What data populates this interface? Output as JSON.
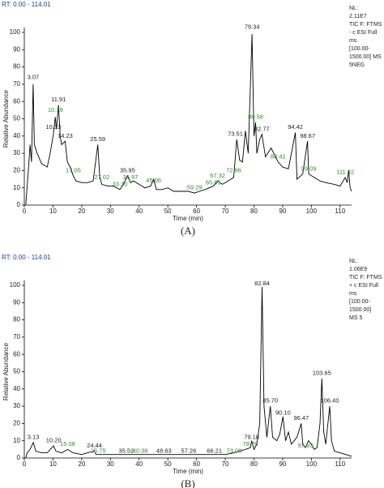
{
  "chart_data": [
    {
      "type": "line",
      "header": "RT: 0.00 - 114.01",
      "info_lines": [
        "NL:",
        "2.11E7",
        "TIC F: FTMS",
        "- c ESI Full",
        "ms",
        "[100.00-",
        "1500.00] MS",
        "5NEG"
      ],
      "x_label": "Time (min)",
      "y_label": "Relative Abundance",
      "caption": "(A)",
      "color": "#000000",
      "header_color": "#1f3fa0",
      "xlim": [
        0,
        114.01
      ],
      "ylim": [
        0,
        100
      ],
      "xticks": [
        0,
        10,
        20,
        30,
        40,
        50,
        60,
        70,
        80,
        90,
        100,
        110
      ],
      "yticks": [
        0,
        10,
        20,
        30,
        40,
        50,
        60,
        70,
        80,
        90,
        100
      ],
      "x": [
        0.5,
        1.5,
        2,
        2.5,
        3.07,
        3.5,
        4.5,
        6,
        8,
        9,
        10.13,
        10.79,
        11.2,
        11.91,
        12.5,
        13,
        14.23,
        15,
        16,
        17.05,
        18,
        20,
        22,
        24,
        25.59,
        26.3,
        27.02,
        29,
        31,
        33.3,
        34.5,
        35.95,
        37,
        38,
        40,
        42,
        44,
        45.06,
        46,
        48,
        50,
        52,
        55,
        57,
        59.29,
        61,
        63,
        65.85,
        67.32,
        69,
        71,
        72.96,
        74,
        75,
        76,
        77,
        78,
        79.34,
        80,
        80.58,
        81,
        82,
        82.77,
        84,
        86,
        88.41,
        90,
        92,
        94.42,
        95,
        97,
        98.67,
        99.09,
        101,
        103,
        105,
        108,
        110,
        111.82,
        112.5,
        113,
        113.5,
        114
      ],
      "values": [
        0,
        22,
        35,
        25,
        70,
        35,
        30,
        24,
        22,
        30,
        41,
        51,
        44,
        58,
        40,
        35,
        37,
        25,
        22,
        17,
        14,
        13,
        13,
        14,
        35,
        16,
        12,
        11,
        11,
        9,
        12,
        17,
        13,
        14,
        12,
        10,
        11,
        15,
        9,
        9,
        10,
        8,
        8,
        8,
        7,
        8,
        9,
        11,
        14,
        12,
        14,
        16,
        38,
        26,
        25,
        43,
        30,
        99,
        40,
        48,
        30,
        38,
        41,
        28,
        33,
        25,
        22,
        21,
        42,
        15,
        18,
        37,
        18,
        16,
        14,
        13,
        12,
        11,
        16,
        13,
        20,
        10,
        8
      ],
      "peaks": [
        {
          "label": "3.07",
          "x": 3.07,
          "y": 74,
          "color": "#222222"
        },
        {
          "label": "10.13",
          "x": 10.13,
          "y": 45,
          "color": "#222222"
        },
        {
          "label": "10.79",
          "x": 10.79,
          "y": 55,
          "color": "#2e8b2e"
        },
        {
          "label": "11.91",
          "x": 11.91,
          "y": 61,
          "color": "#222222"
        },
        {
          "label": "14.23",
          "x": 14.23,
          "y": 40,
          "color": "#222222"
        },
        {
          "label": "17.05",
          "x": 17.05,
          "y": 20,
          "color": "#2e8b2e"
        },
        {
          "label": "25.59",
          "x": 25.59,
          "y": 38,
          "color": "#222222"
        },
        {
          "label": "27.02",
          "x": 27.02,
          "y": 16,
          "color": "#2e8b2e"
        },
        {
          "label": "33.30",
          "x": 33.3,
          "y": 12,
          "color": "#2e8b2e"
        },
        {
          "label": "35.95",
          "x": 35.95,
          "y": 20,
          "color": "#222222"
        },
        {
          "label": "36.97",
          "x": 36.97,
          "y": 16,
          "color": "#2e8b2e"
        },
        {
          "label": "45.06",
          "x": 45.06,
          "y": 14,
          "color": "#2e8b2e"
        },
        {
          "label": "59.29",
          "x": 59.29,
          "y": 10,
          "color": "#2e8b2e"
        },
        {
          "label": "65.85",
          "x": 65.85,
          "y": 13,
          "color": "#2e8b2e"
        },
        {
          "label": "67.32",
          "x": 67.32,
          "y": 17,
          "color": "#2e8b2e"
        },
        {
          "label": "72.96",
          "x": 72.96,
          "y": 20,
          "color": "#2e8b2e"
        },
        {
          "label": "73.51",
          "x": 73.51,
          "y": 41,
          "color": "#222222"
        },
        {
          "label": "79.34",
          "x": 79.34,
          "y": 103,
          "color": "#222222"
        },
        {
          "label": "80.58",
          "x": 80.58,
          "y": 51,
          "color": "#2e8b2e"
        },
        {
          "label": "82.77",
          "x": 82.77,
          "y": 44,
          "color": "#222222"
        },
        {
          "label": "88.41",
          "x": 88.41,
          "y": 28,
          "color": "#2e8b2e"
        },
        {
          "label": "94.42",
          "x": 94.42,
          "y": 45,
          "color": "#222222"
        },
        {
          "label": "98.67",
          "x": 98.67,
          "y": 40,
          "color": "#222222"
        },
        {
          "label": "99.09",
          "x": 99.09,
          "y": 21,
          "color": "#2e8b2e"
        },
        {
          "label": "111.82",
          "x": 111.82,
          "y": 19,
          "color": "#2e8b2e"
        }
      ]
    },
    {
      "type": "line",
      "header": "RT: 0.00 - 114.01",
      "info_lines": [
        "NL:",
        "1.06E9",
        "TIC F: FTMS",
        "+ c ESI Full",
        "ms",
        "[100.00-",
        "1500.00]",
        "MS 5"
      ],
      "x_label": "Time (min)",
      "y_label": "Relative Abundance",
      "caption": "(B)",
      "color": "#000000",
      "header_color": "#1f3fa0",
      "xlim": [
        0,
        114.01
      ],
      "ylim": [
        0,
        100
      ],
      "xticks": [
        0,
        10,
        20,
        30,
        40,
        50,
        60,
        70,
        80,
        90,
        100,
        110
      ],
      "yticks": [
        0,
        10,
        20,
        30,
        40,
        50,
        60,
        70,
        80,
        90,
        100
      ],
      "x": [
        0.5,
        1,
        2,
        3.13,
        4,
        6,
        8,
        10.2,
        11,
        13,
        15.08,
        17,
        20,
        22,
        24.44,
        25,
        28,
        32,
        35.52,
        38,
        40.38,
        44,
        48.63,
        52,
        57.26,
        62,
        66.21,
        70,
        73.08,
        75,
        77,
        78.76,
        79.18,
        80,
        81,
        82,
        82.84,
        83.5,
        84.5,
        85.7,
        86.5,
        88,
        89,
        90.1,
        91,
        92,
        93,
        95,
        96.47,
        97,
        97.93,
        99,
        100,
        101,
        102,
        103,
        103.65,
        104.3,
        105,
        106.4,
        107,
        108,
        110,
        112,
        114
      ],
      "values": [
        0,
        3,
        5,
        9,
        4,
        3,
        3,
        7,
        4,
        3,
        5,
        3,
        2,
        3,
        4,
        2,
        2,
        2,
        2,
        2,
        2,
        2,
        2,
        2,
        2,
        2,
        2,
        2,
        3,
        4,
        5,
        6,
        10,
        5,
        8,
        20,
        99,
        30,
        12,
        30,
        12,
        10,
        14,
        24,
        10,
        15,
        8,
        12,
        20,
        8,
        6,
        10,
        8,
        5,
        6,
        20,
        46,
        15,
        8,
        30,
        10,
        4,
        3,
        2,
        1
      ],
      "peaks": [
        {
          "label": "3.13",
          "x": 3.13,
          "y": 12,
          "color": "#222222"
        },
        {
          "label": "10.20",
          "x": 10.2,
          "y": 10,
          "color": "#222222"
        },
        {
          "label": "15.08",
          "x": 15.08,
          "y": 8,
          "color": "#2e8b2e"
        },
        {
          "label": "24.44",
          "x": 24.44,
          "y": 7,
          "color": "#222222"
        },
        {
          "label": "25.75",
          "x": 25.75,
          "y": 4,
          "color": "#2e8b2e"
        },
        {
          "label": "35.52",
          "x": 35.52,
          "y": 4,
          "color": "#222222"
        },
        {
          "label": "40.38",
          "x": 40.38,
          "y": 4,
          "color": "#2e8b2e"
        },
        {
          "label": "48.63",
          "x": 48.63,
          "y": 4,
          "color": "#222222"
        },
        {
          "label": "57.26",
          "x": 57.26,
          "y": 4,
          "color": "#222222"
        },
        {
          "label": "66.21",
          "x": 66.21,
          "y": 4,
          "color": "#222222"
        },
        {
          "label": "73.08",
          "x": 73.08,
          "y": 4,
          "color": "#2e8b2e"
        },
        {
          "label": "78.76",
          "x": 78.76,
          "y": 8,
          "color": "#2e8b2e"
        },
        {
          "label": "79.18",
          "x": 79.18,
          "y": 12,
          "color": "#222222"
        },
        {
          "label": "82.84",
          "x": 82.84,
          "y": 101,
          "color": "#222222"
        },
        {
          "label": "85.70",
          "x": 85.7,
          "y": 33,
          "color": "#222222"
        },
        {
          "label": "90.10",
          "x": 90.1,
          "y": 26,
          "color": "#222222"
        },
        {
          "label": "96.47",
          "x": 96.47,
          "y": 23,
          "color": "#222222"
        },
        {
          "label": "97.93",
          "x": 97.93,
          "y": 7,
          "color": "#2e8b2e"
        },
        {
          "label": "103.65",
          "x": 103.65,
          "y": 49,
          "color": "#222222"
        },
        {
          "label": "106.40",
          "x": 106.4,
          "y": 33,
          "color": "#222222"
        }
      ]
    }
  ]
}
